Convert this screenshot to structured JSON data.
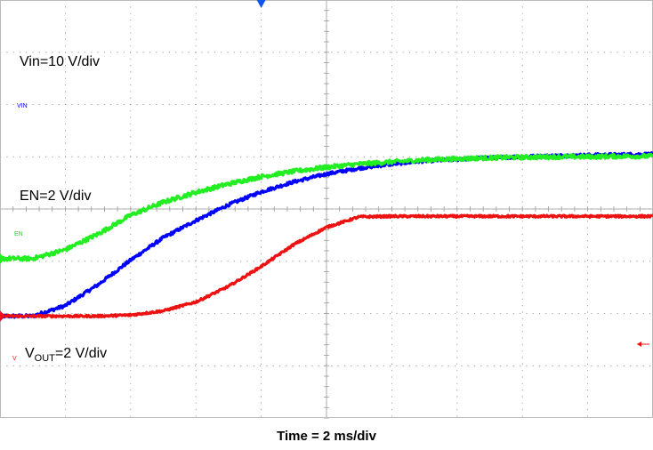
{
  "chart_data": {
    "type": "line",
    "xlabel": "Time = 2 ms/div",
    "ylabel": "",
    "x_unit": "ms",
    "x_per_div_ms": 2,
    "xlim": [
      0,
      20
    ],
    "ylim": [
      -4,
      4
    ],
    "grid": true,
    "grid_style": "dotted",
    "background": "white",
    "trigger_marker": "top",
    "x": [
      0,
      1,
      2,
      3,
      4,
      5,
      6,
      7,
      8,
      9,
      10,
      11,
      12,
      13,
      14,
      15,
      16,
      17,
      18,
      19,
      20
    ],
    "series": [
      {
        "name": "VIN",
        "channel_label": "VIN",
        "scale_label": "Vin=10 V/div",
        "color": "#0000ff",
        "values": [
          -2.05,
          -2.05,
          -1.85,
          -1.45,
          -0.98,
          -0.55,
          -0.22,
          0.08,
          0.33,
          0.52,
          0.67,
          0.78,
          0.86,
          0.92,
          0.95,
          0.98,
          1.0,
          1.02,
          1.03,
          1.04,
          1.05
        ],
        "noise": 0.03
      },
      {
        "name": "EN",
        "channel_label": "EN",
        "scale_label": "EN=2 V/div",
        "color": "#22ee22",
        "values": [
          -0.95,
          -0.95,
          -0.78,
          -0.48,
          -0.12,
          0.13,
          0.32,
          0.48,
          0.62,
          0.72,
          0.8,
          0.86,
          0.9,
          0.94,
          0.96,
          0.98,
          0.99,
          1.0,
          1.0,
          1.01,
          1.01
        ],
        "noise": 0.04
      },
      {
        "name": "VOUT",
        "channel_label": "V",
        "scale_label_prefix": "V",
        "scale_label_sub": "OUT",
        "scale_label_suffix": "=2 V/div",
        "color": "#ee1111",
        "values": [
          -2.05,
          -2.05,
          -2.05,
          -2.05,
          -2.03,
          -1.95,
          -1.78,
          -1.48,
          -1.1,
          -0.68,
          -0.35,
          -0.15,
          -0.14,
          -0.14,
          -0.14,
          -0.14,
          -0.14,
          -0.14,
          -0.14,
          -0.14,
          -0.14
        ],
        "noise": 0.02
      }
    ]
  }
}
